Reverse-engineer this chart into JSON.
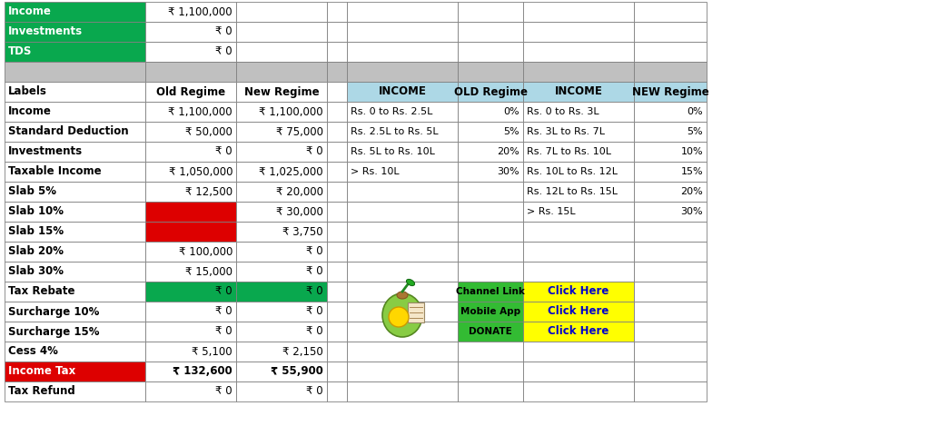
{
  "fig_width": 10.24,
  "fig_height": 4.69,
  "bg_color": "#ffffff",
  "top_rows": [
    {
      "label": "Income",
      "val": "₹ 1,100,000",
      "label_bg": "#09A84E",
      "label_fg": "#ffffff"
    },
    {
      "label": "Investments",
      "val": "₹ 0",
      "label_bg": "#09A84E",
      "label_fg": "#ffffff"
    },
    {
      "label": "TDS",
      "val": "₹ 0",
      "label_bg": "#09A84E",
      "label_fg": "#ffffff"
    }
  ],
  "main_headers": [
    "Labels",
    "Old Regime",
    "New Regime"
  ],
  "main_rows": [
    {
      "label": "Income",
      "old": "₹ 1,100,000",
      "new": "₹ 1,100,000",
      "lbg": "#ffffff",
      "lfg": "#000000",
      "obg": "#ffffff",
      "nbg": "#ffffff",
      "bold_val": false
    },
    {
      "label": "Standard Deduction",
      "old": "₹ 50,000",
      "new": "₹ 75,000",
      "lbg": "#ffffff",
      "lfg": "#000000",
      "obg": "#ffffff",
      "nbg": "#ffffff",
      "bold_val": false
    },
    {
      "label": "Investments",
      "old": "₹ 0",
      "new": "₹ 0",
      "lbg": "#ffffff",
      "lfg": "#000000",
      "obg": "#ffffff",
      "nbg": "#ffffff",
      "bold_val": false
    },
    {
      "label": "Taxable Income",
      "old": "₹ 1,050,000",
      "new": "₹ 1,025,000",
      "lbg": "#ffffff",
      "lfg": "#000000",
      "obg": "#ffffff",
      "nbg": "#ffffff",
      "bold_val": false
    },
    {
      "label": "Slab 5%",
      "old": "₹ 12,500",
      "new": "₹ 20,000",
      "lbg": "#ffffff",
      "lfg": "#000000",
      "obg": "#ffffff",
      "nbg": "#ffffff",
      "bold_val": false
    },
    {
      "label": "Slab 10%",
      "old": "",
      "new": "₹ 30,000",
      "lbg": "#ffffff",
      "lfg": "#000000",
      "obg": "#DD0000",
      "nbg": "#ffffff",
      "bold_val": false
    },
    {
      "label": "Slab 15%",
      "old": "",
      "new": "₹ 3,750",
      "lbg": "#ffffff",
      "lfg": "#000000",
      "obg": "#DD0000",
      "nbg": "#ffffff",
      "bold_val": false
    },
    {
      "label": "Slab 20%",
      "old": "₹ 100,000",
      "new": "₹ 0",
      "lbg": "#ffffff",
      "lfg": "#000000",
      "obg": "#ffffff",
      "nbg": "#ffffff",
      "bold_val": false
    },
    {
      "label": "Slab 30%",
      "old": "₹ 15,000",
      "new": "₹ 0",
      "lbg": "#ffffff",
      "lfg": "#000000",
      "obg": "#ffffff",
      "nbg": "#ffffff",
      "bold_val": false
    },
    {
      "label": "Tax Rebate",
      "old": "₹ 0",
      "new": "₹ 0",
      "lbg": "#ffffff",
      "lfg": "#000000",
      "obg": "#09A84E",
      "nbg": "#09A84E",
      "bold_val": false
    },
    {
      "label": "Surcharge 10%",
      "old": "₹ 0",
      "new": "₹ 0",
      "lbg": "#ffffff",
      "lfg": "#000000",
      "obg": "#ffffff",
      "nbg": "#ffffff",
      "bold_val": false
    },
    {
      "label": "Surcharge 15%",
      "old": "₹ 0",
      "new": "₹ 0",
      "lbg": "#ffffff",
      "lfg": "#000000",
      "obg": "#ffffff",
      "nbg": "#ffffff",
      "bold_val": false
    },
    {
      "label": "Cess 4%",
      "old": "₹ 5,100",
      "new": "₹ 2,150",
      "lbg": "#ffffff",
      "lfg": "#000000",
      "obg": "#ffffff",
      "nbg": "#ffffff",
      "bold_val": false
    },
    {
      "label": "Income Tax",
      "old": "₹ 132,600",
      "new": "₹ 55,900",
      "lbg": "#DD0000",
      "lfg": "#ffffff",
      "obg": "#ffffff",
      "nbg": "#ffffff",
      "bold_val": true
    },
    {
      "label": "Tax Refund",
      "old": "₹ 0",
      "new": "₹ 0",
      "lbg": "#ffffff",
      "lfg": "#000000",
      "obg": "#ffffff",
      "nbg": "#ffffff",
      "bold_val": false
    }
  ],
  "slab_headers": [
    "INCOME",
    "OLD Regime",
    "INCOME",
    "NEW Regime"
  ],
  "slab_header_bg": "#ADD8E6",
  "old_slabs": [
    [
      "Rs. 0 to Rs. 2.5L",
      "0%"
    ],
    [
      "Rs. 2.5L to Rs. 5L",
      "5%"
    ],
    [
      "Rs. 5L to Rs. 10L",
      "20%"
    ],
    [
      "> Rs. 10L",
      "30%"
    ],
    [
      "",
      ""
    ],
    [
      "",
      ""
    ]
  ],
  "new_slabs": [
    [
      "Rs. 0 to Rs. 3L",
      "0%"
    ],
    [
      "Rs. 3L to Rs. 7L",
      "5%"
    ],
    [
      "Rs. 7L to Rs. 10L",
      "10%"
    ],
    [
      "Rs. 10L to Rs. 12L",
      "15%"
    ],
    [
      "Rs. 12L to Rs. 15L",
      "20%"
    ],
    [
      "> Rs. 15L",
      "30%"
    ]
  ],
  "link_labels": [
    "Channel Link",
    "Mobile App",
    "DONATE"
  ],
  "link_texts": [
    "Click Here",
    "Click Here",
    "Click Here"
  ],
  "link_label_bg": "#33BB33",
  "link_text_bg": "#FFFF00",
  "link_text_color": "#0000CC",
  "gray_sep_bg": "#C0C0C0",
  "border_color": "#808080",
  "lw": 0.6
}
